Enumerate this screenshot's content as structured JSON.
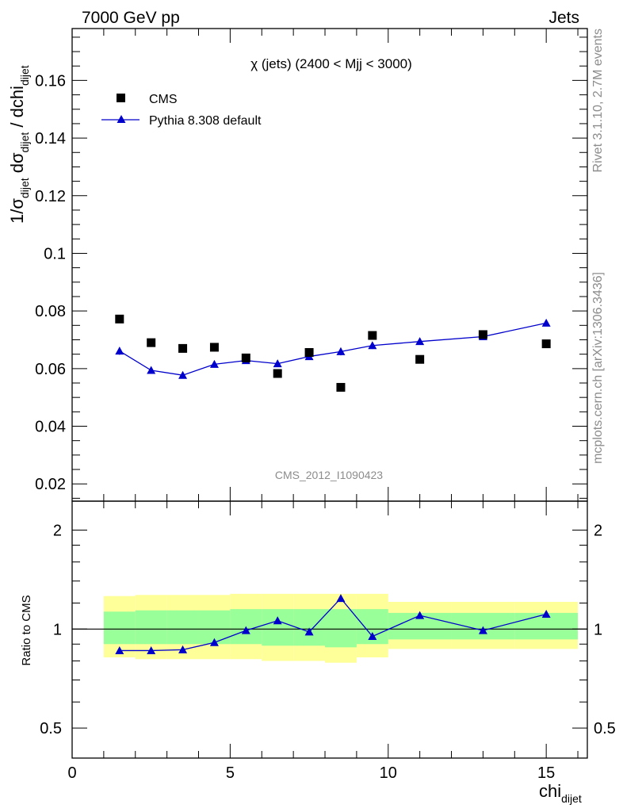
{
  "header": {
    "left": "7000 GeV pp",
    "right": "Jets"
  },
  "side_text": {
    "rivet": "Rivet 3.1.10,  2.7M events",
    "mcplots": "mcplots.cern.ch [arXiv:1306.3436]"
  },
  "plot_title": "χ (jets) (2400 < Mjj < 3000)",
  "watermark": "CMS_2012_I1090423",
  "chart_data": [
    {
      "type": "scatter",
      "panel": "main",
      "ylabel": "1/σ_dijet dσ_dijet / dchi_dijet",
      "xlim": [
        0,
        16.3
      ],
      "ylim": [
        0.014,
        0.178
      ],
      "y_ticks": [
        0.02,
        0.04,
        0.06,
        0.08,
        0.1,
        0.12,
        0.14,
        0.16
      ],
      "y_tick_labels": [
        "0.02",
        "0.04",
        "0.06",
        "0.08",
        "0.1",
        "0.12",
        "0.14",
        "0.16"
      ],
      "legend": "top-left",
      "series": [
        {
          "name": "CMS",
          "marker": "square",
          "color": "#000000",
          "x": [
            1.5,
            2.5,
            3.5,
            4.5,
            5.5,
            6.5,
            7.5,
            8.5,
            9.5,
            11,
            13,
            15
          ],
          "y": [
            0.0772,
            0.069,
            0.067,
            0.0674,
            0.0637,
            0.0583,
            0.0656,
            0.0535,
            0.0715,
            0.0632,
            0.0718,
            0.0686
          ]
        },
        {
          "name": "Pythia 8.308 default",
          "marker": "triangle",
          "line": true,
          "color": "#0000cc",
          "x": [
            1.5,
            2.5,
            3.5,
            4.5,
            5.5,
            6.5,
            7.5,
            8.5,
            9.5,
            11,
            13,
            15
          ],
          "y": [
            0.0661,
            0.0594,
            0.0577,
            0.0615,
            0.0628,
            0.0617,
            0.0642,
            0.0659,
            0.068,
            0.0694,
            0.0711,
            0.0758
          ],
          "yerr": [
            0.0013,
            0.0011,
            0.0011,
            0.0011,
            0.0011,
            0.0012,
            0.0012,
            0.0013,
            0.0012,
            0.0008,
            0.0008,
            0.0008
          ]
        }
      ]
    },
    {
      "type": "line",
      "panel": "ratio",
      "ylabel": "Ratio to CMS",
      "xlabel": "chi_dijet",
      "xlim": [
        0,
        16.3
      ],
      "ylim": [
        0.405,
        2.45
      ],
      "log_y": true,
      "y_ticks": [
        0.5,
        1,
        2
      ],
      "y_tick_labels": [
        "0.5",
        "1",
        "2"
      ],
      "x_ticks": [
        0,
        5,
        10,
        15
      ],
      "x_tick_labels": [
        "0",
        "5",
        "10",
        "15"
      ],
      "reference_line": 1,
      "bands": {
        "bin_edges": [
          1,
          2,
          3,
          4,
          5,
          6,
          7,
          8,
          9,
          10,
          12,
          14,
          16
        ],
        "inner_low": [
          0.9,
          0.9,
          0.9,
          0.9,
          0.9,
          0.89,
          0.89,
          0.88,
          0.9,
          0.93,
          0.93,
          0.93
        ],
        "inner_high": [
          1.13,
          1.14,
          1.14,
          1.14,
          1.15,
          1.15,
          1.15,
          1.15,
          1.15,
          1.12,
          1.12,
          1.12
        ],
        "outer_low": [
          0.82,
          0.81,
          0.81,
          0.81,
          0.81,
          0.8,
          0.8,
          0.79,
          0.82,
          0.87,
          0.87,
          0.87
        ],
        "outer_high": [
          1.26,
          1.27,
          1.27,
          1.27,
          1.28,
          1.28,
          1.28,
          1.28,
          1.28,
          1.21,
          1.21,
          1.21
        ],
        "inner_color": "#99ff99",
        "outer_color": "#ffff99"
      },
      "series": [
        {
          "name": "Pythia 8.308 default",
          "marker": "triangle",
          "color": "#0000cc",
          "x": [
            1.5,
            2.5,
            3.5,
            4.5,
            5.5,
            6.5,
            7.5,
            8.5,
            9.5,
            11,
            13,
            15
          ],
          "y": [
            0.86,
            0.86,
            0.865,
            0.91,
            0.99,
            1.06,
            0.98,
            1.24,
            0.95,
            1.1,
            0.99,
            1.11
          ]
        }
      ]
    }
  ]
}
